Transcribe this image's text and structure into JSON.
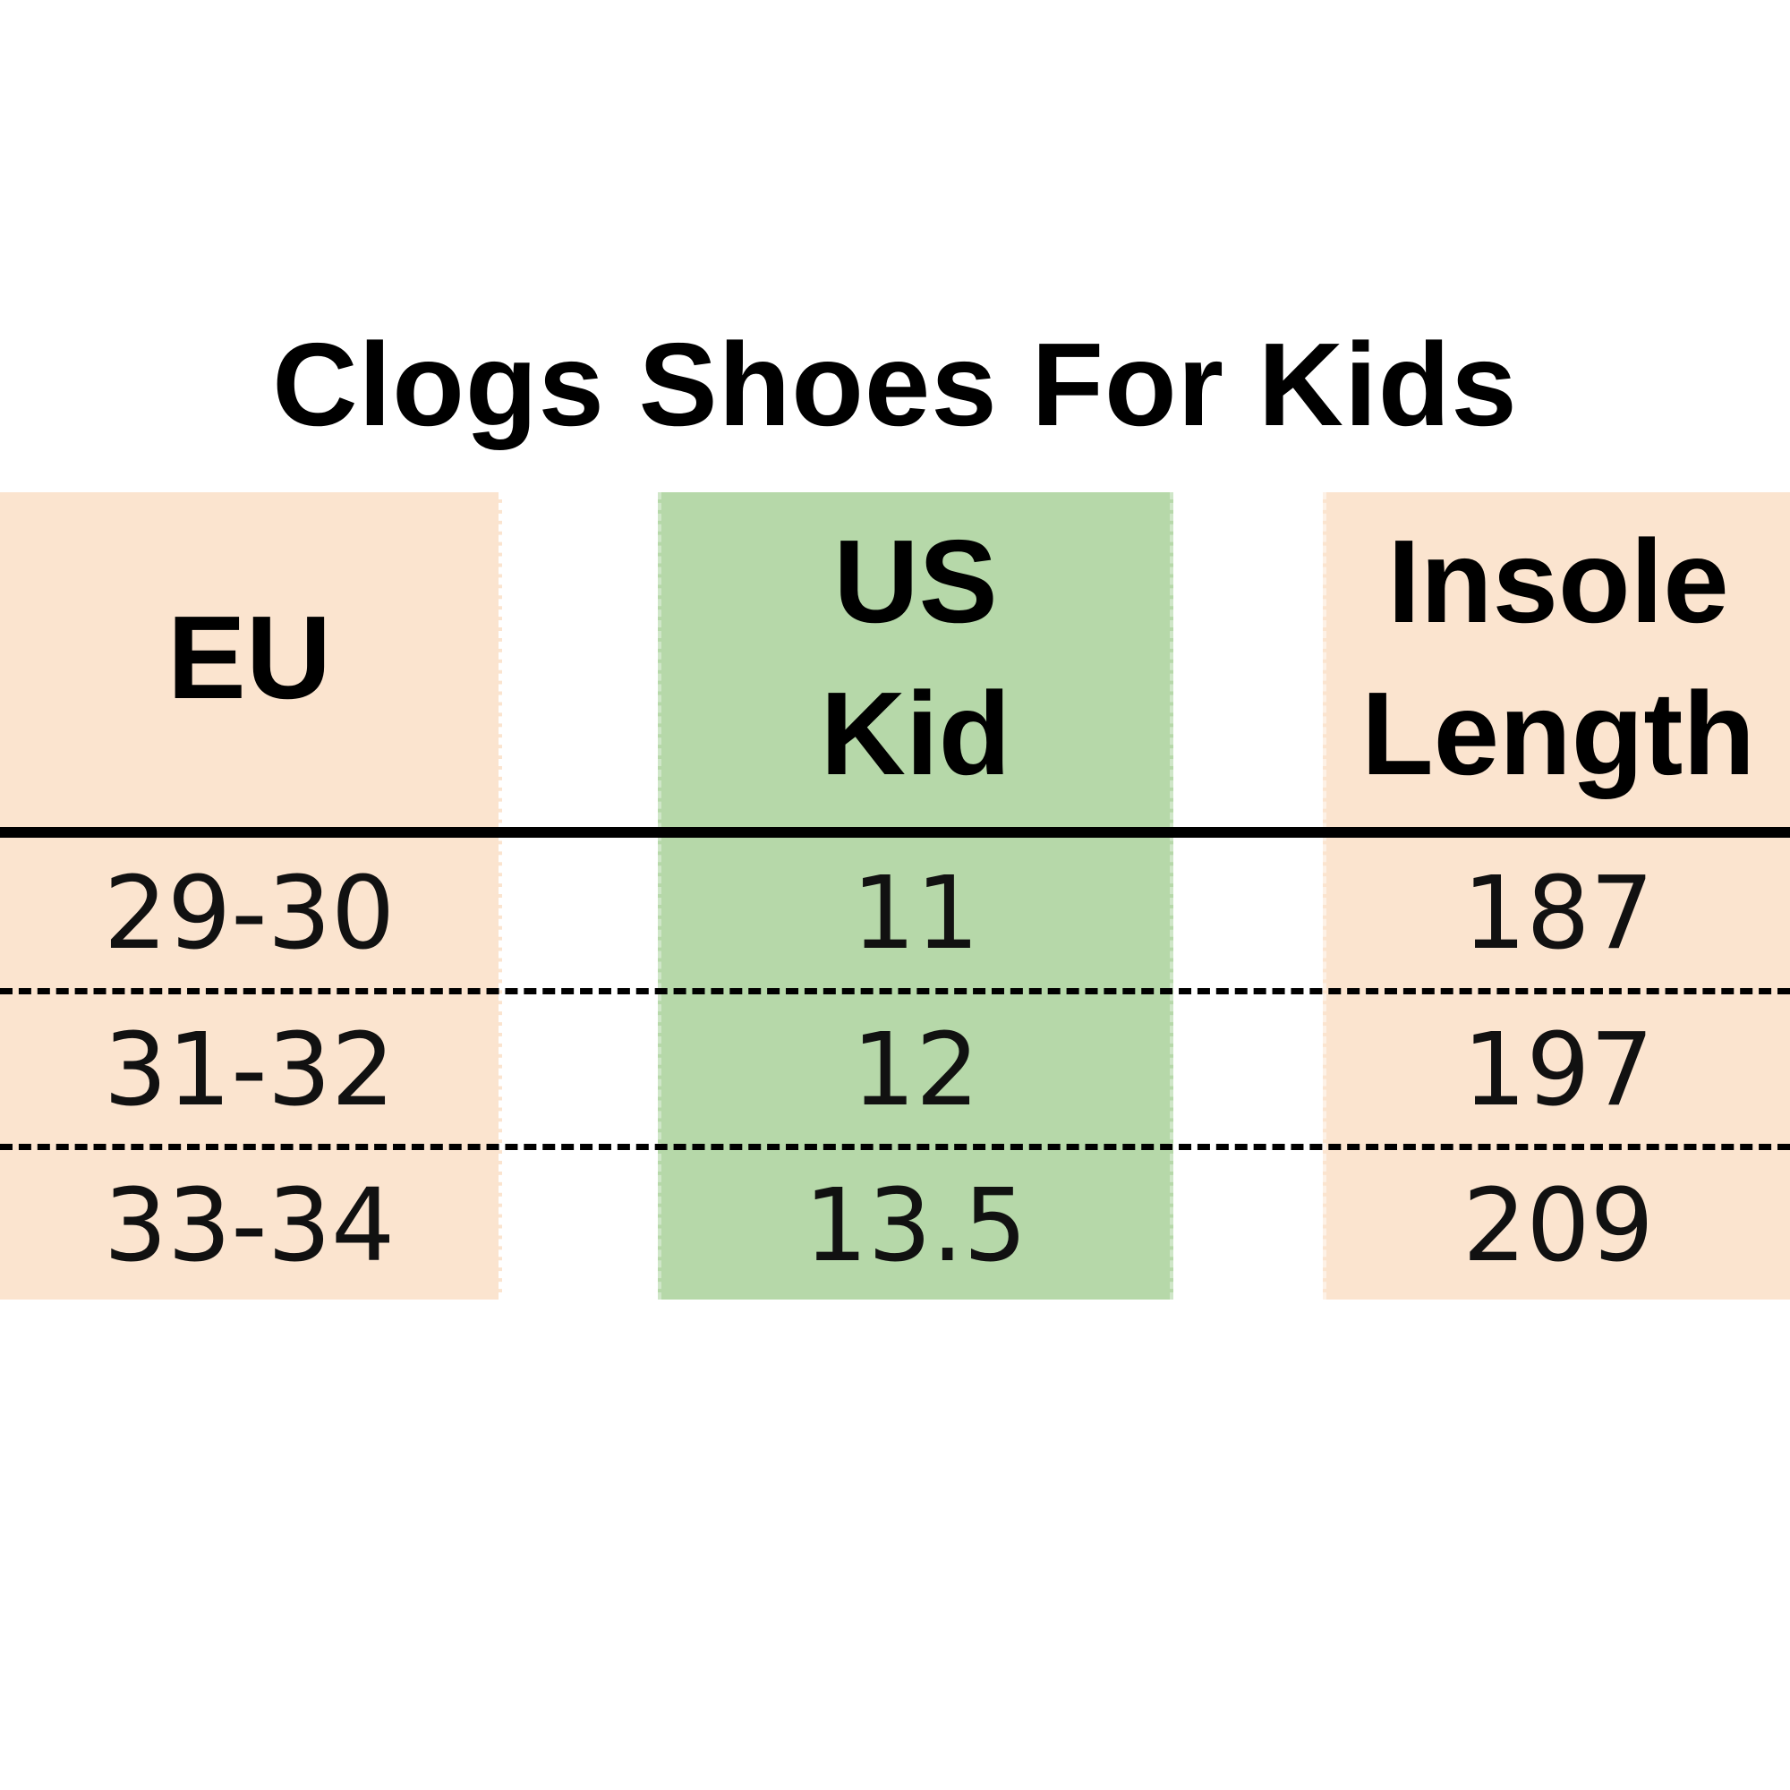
{
  "title": "Clogs Shoes For Kids",
  "colors": {
    "eu_column": "#fbe4cf",
    "us_column": "#b6d8a9",
    "insole_column": "#fbe4cf"
  },
  "table": {
    "headers": {
      "eu": "EU",
      "us_line1": "US",
      "us_line2": "Kid",
      "insole_line1": "Insole",
      "insole_line2": "Length"
    },
    "rows": [
      {
        "eu": "29-30",
        "us": "11",
        "insole": "187"
      },
      {
        "eu": "31-32",
        "us": "12",
        "insole": "197"
      },
      {
        "eu": "33-34",
        "us": "13.5",
        "insole": "209"
      }
    ]
  }
}
